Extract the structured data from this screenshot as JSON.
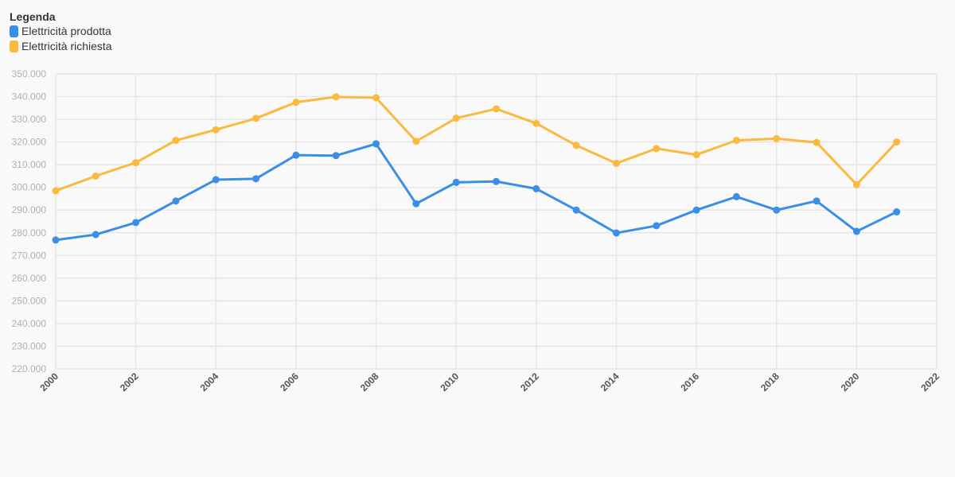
{
  "chart_data": {
    "type": "line",
    "legend_title": "Legenda",
    "legend_position": "top-left",
    "x": [
      2000,
      2001,
      2002,
      2003,
      2004,
      2005,
      2006,
      2007,
      2008,
      2009,
      2010,
      2011,
      2012,
      2013,
      2014,
      2015,
      2016,
      2017,
      2018,
      2019,
      2020,
      2021
    ],
    "series": [
      {
        "name": "Elettricità prodotta",
        "color": "#3a8ee6",
        "values": [
          276800,
          279200,
          284500,
          294000,
          303400,
          303800,
          314200,
          314000,
          319200,
          292800,
          302200,
          302600,
          299400,
          290000,
          279900,
          283100,
          290000,
          295900,
          290000,
          294000,
          280600,
          289200
        ]
      },
      {
        "name": "Elettricità richiesta",
        "color": "#fbb93e",
        "values": [
          298500,
          305000,
          310900,
          320700,
          325400,
          330400,
          337500,
          339900,
          339500,
          320300,
          330500,
          334600,
          328200,
          318500,
          310600,
          317100,
          314400,
          320700,
          321500,
          319800,
          301200,
          320000
        ]
      }
    ],
    "xlim": [
      2000,
      2022
    ],
    "ylim": [
      220000,
      350000
    ],
    "x_ticks": [
      "2000",
      "2002",
      "2004",
      "2006",
      "2008",
      "2010",
      "2012",
      "2014",
      "2016",
      "2018",
      "2020",
      "2022"
    ],
    "y_ticks": [
      "350.000",
      "340.000",
      "330.000",
      "320.000",
      "310.000",
      "300.000",
      "290.000",
      "280.000",
      "270.000",
      "260.000",
      "250.000",
      "240.000",
      "230.000",
      "220.000"
    ],
    "grid": true
  }
}
